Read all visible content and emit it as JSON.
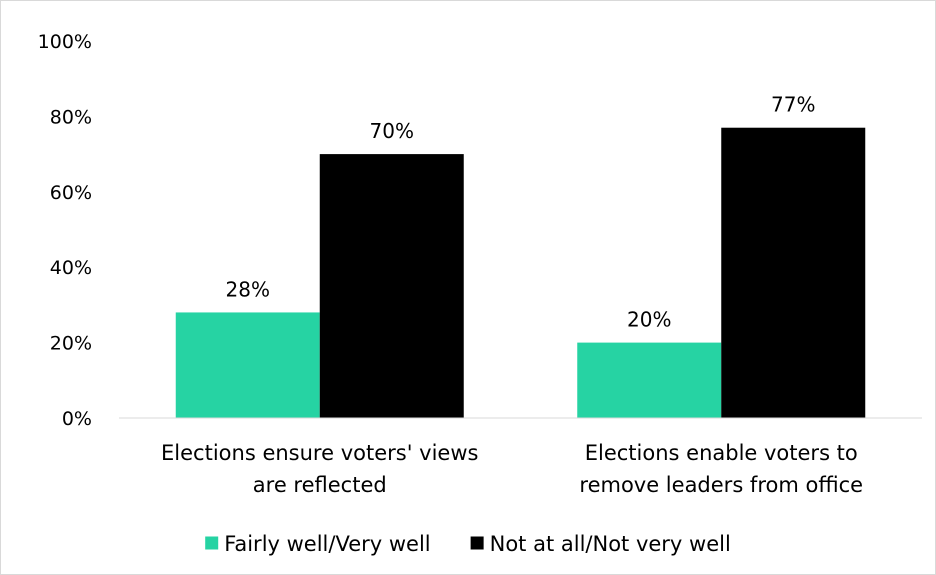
{
  "chart_data": {
    "type": "bar",
    "categories": [
      [
        "Elections ensure voters' views",
        "are reflected"
      ],
      [
        "Elections enable voters to",
        "remove leaders from office"
      ]
    ],
    "series": [
      {
        "name": "Fairly well/Very well",
        "color": "#26d3a3",
        "values": [
          28,
          20
        ],
        "labels": [
          "28%",
          "20%"
        ]
      },
      {
        "name": "Not at all/Not very well",
        "color": "#000000",
        "values": [
          70,
          77
        ],
        "labels": [
          "70%",
          "77%"
        ]
      }
    ],
    "yticks": [
      {
        "value": 0,
        "label": "0%"
      },
      {
        "value": 20,
        "label": "20%"
      },
      {
        "value": 40,
        "label": "40%"
      },
      {
        "value": 60,
        "label": "60%"
      },
      {
        "value": 80,
        "label": "80%"
      },
      {
        "value": 100,
        "label": "100%"
      }
    ],
    "ylim": [
      0,
      100
    ],
    "grid": false,
    "legend_position": "bottom"
  }
}
